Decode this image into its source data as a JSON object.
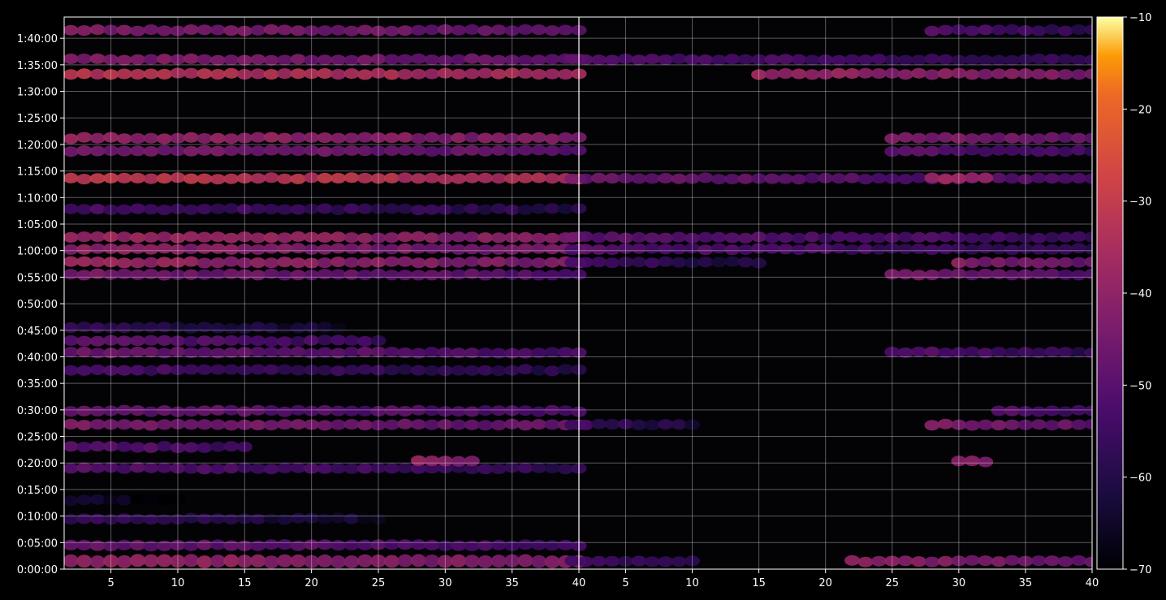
{
  "chart_data": {
    "type": "heatmap",
    "colormap": "inferno",
    "background": "#000000",
    "panel_divider_x": 40,
    "x_tick_labels": [
      "5",
      "10",
      "15",
      "20",
      "25",
      "30",
      "35",
      "40",
      "5",
      "10",
      "15",
      "20",
      "25",
      "30",
      "35",
      "40"
    ],
    "y_tick_labels": [
      "0:00:00",
      "0:05:00",
      "0:10:00",
      "0:15:00",
      "0:20:00",
      "0:25:00",
      "0:30:00",
      "0:35:00",
      "0:40:00",
      "0:45:00",
      "0:50:00",
      "0:55:00",
      "1:00:00",
      "1:05:00",
      "1:10:00",
      "1:15:00",
      "1:20:00",
      "1:25:00",
      "1:30:00",
      "1:35:00",
      "1:40:00"
    ],
    "colorbar": {
      "range": [
        -70,
        -10
      ],
      "tick_labels": [
        "−10",
        "−20",
        "−30",
        "−40",
        "−50",
        "−60",
        "−70"
      ]
    },
    "grid": true,
    "legend": "none",
    "left_panel": {
      "x_range": [
        1.5,
        40
      ],
      "time_range_minutes": [
        0,
        104
      ],
      "bands": [
        {
          "t_min": 1.5,
          "x0": 1,
          "x1": 40,
          "db": -38,
          "rows": 2
        },
        {
          "t_min": 4.5,
          "x0": 1,
          "x1": 40,
          "db": -46,
          "rows": 1
        },
        {
          "t_min": 9.5,
          "x0": 1,
          "x1": 25,
          "db": -56,
          "rows": 1
        },
        {
          "t_min": 13,
          "x0": 1,
          "x1": 10,
          "db": -62,
          "rows": 1
        },
        {
          "t_min": 19,
          "x0": 1,
          "x1": 40,
          "db": -50,
          "rows": 1
        },
        {
          "t_min": 20.3,
          "x0": 28,
          "x1": 32,
          "db": -38,
          "rows": 1
        },
        {
          "t_min": 23,
          "x0": 1,
          "x1": 15,
          "db": -48,
          "rows": 1
        },
        {
          "t_min": 27.2,
          "x0": 1,
          "x1": 40,
          "db": -42,
          "rows": 1
        },
        {
          "t_min": 29.8,
          "x0": 1,
          "x1": 40,
          "db": -46,
          "rows": 1
        },
        {
          "t_min": 37.5,
          "x0": 1,
          "x1": 40,
          "db": -52,
          "rows": 1
        },
        {
          "t_min": 40.8,
          "x0": 1,
          "x1": 40,
          "db": -46,
          "rows": 1
        },
        {
          "t_min": 43,
          "x0": 1,
          "x1": 25,
          "db": -48,
          "rows": 1
        },
        {
          "t_min": 45.5,
          "x0": 1,
          "x1": 22,
          "db": -56,
          "rows": 1
        },
        {
          "t_min": 55.5,
          "x0": 1,
          "x1": 40,
          "db": -44,
          "rows": 1
        },
        {
          "t_min": 57.8,
          "x0": 1,
          "x1": 40,
          "db": -38,
          "rows": 1
        },
        {
          "t_min": 60.3,
          "x0": 1,
          "x1": 40,
          "db": -40,
          "rows": 1
        },
        {
          "t_min": 62.5,
          "x0": 1,
          "x1": 40,
          "db": -37,
          "rows": 1
        },
        {
          "t_min": 67.8,
          "x0": 1,
          "x1": 40,
          "db": -52,
          "rows": 1
        },
        {
          "t_min": 73.6,
          "x0": 1,
          "x1": 40,
          "db": -30,
          "rows": 1
        },
        {
          "t_min": 78.8,
          "x0": 1,
          "x1": 40,
          "db": -43,
          "rows": 1
        },
        {
          "t_min": 81.2,
          "x0": 1,
          "x1": 40,
          "db": -38,
          "rows": 1
        },
        {
          "t_min": 93.3,
          "x0": 1,
          "x1": 40,
          "db": -32,
          "rows": 1
        },
        {
          "t_min": 96,
          "x0": 1,
          "x1": 40,
          "db": -42,
          "rows": 1
        },
        {
          "t_min": 101.5,
          "x0": 1,
          "x1": 40,
          "db": -42,
          "rows": 1
        }
      ]
    },
    "right_panel": {
      "x_range": [
        1.5,
        40
      ],
      "time_range_minutes": [
        0,
        104
      ],
      "bands": [
        {
          "t_min": 1.5,
          "x0": 22,
          "x1": 40,
          "db": -40,
          "rows": 1
        },
        {
          "t_min": 1.5,
          "x0": 1,
          "x1": 10,
          "db": -52,
          "rows": 1
        },
        {
          "t_min": 27.2,
          "x0": 28,
          "x1": 40,
          "db": -42,
          "rows": 1
        },
        {
          "t_min": 27.2,
          "x0": 1,
          "x1": 10,
          "db": -54,
          "rows": 1
        },
        {
          "t_min": 29.8,
          "x0": 33,
          "x1": 40,
          "db": -48,
          "rows": 1
        },
        {
          "t_min": 20.3,
          "x0": 30,
          "x1": 32,
          "db": -40,
          "rows": 1
        },
        {
          "t_min": 40.8,
          "x0": 25,
          "x1": 40,
          "db": -50,
          "rows": 1
        },
        {
          "t_min": 55.5,
          "x0": 25,
          "x1": 40,
          "db": -44,
          "rows": 1
        },
        {
          "t_min": 57.8,
          "x0": 30,
          "x1": 40,
          "db": -42,
          "rows": 1
        },
        {
          "t_min": 57.8,
          "x0": 1,
          "x1": 15,
          "db": -54,
          "rows": 1
        },
        {
          "t_min": 60.3,
          "x0": 1,
          "x1": 40,
          "db": -50,
          "rows": 1
        },
        {
          "t_min": 62.5,
          "x0": 1,
          "x1": 40,
          "db": -48,
          "rows": 1
        },
        {
          "t_min": 73.6,
          "x0": 1,
          "x1": 40,
          "db": -46,
          "rows": 1
        },
        {
          "t_min": 73.6,
          "x0": 28,
          "x1": 32,
          "db": -36,
          "rows": 1
        },
        {
          "t_min": 78.8,
          "x0": 25,
          "x1": 40,
          "db": -48,
          "rows": 1
        },
        {
          "t_min": 81.2,
          "x0": 25,
          "x1": 40,
          "db": -42,
          "rows": 1
        },
        {
          "t_min": 93.3,
          "x0": 15,
          "x1": 40,
          "db": -38,
          "rows": 1
        },
        {
          "t_min": 96,
          "x0": 1,
          "x1": 40,
          "db": -50,
          "rows": 1
        },
        {
          "t_min": 101.5,
          "x0": 28,
          "x1": 40,
          "db": -50,
          "rows": 1
        }
      ]
    }
  }
}
